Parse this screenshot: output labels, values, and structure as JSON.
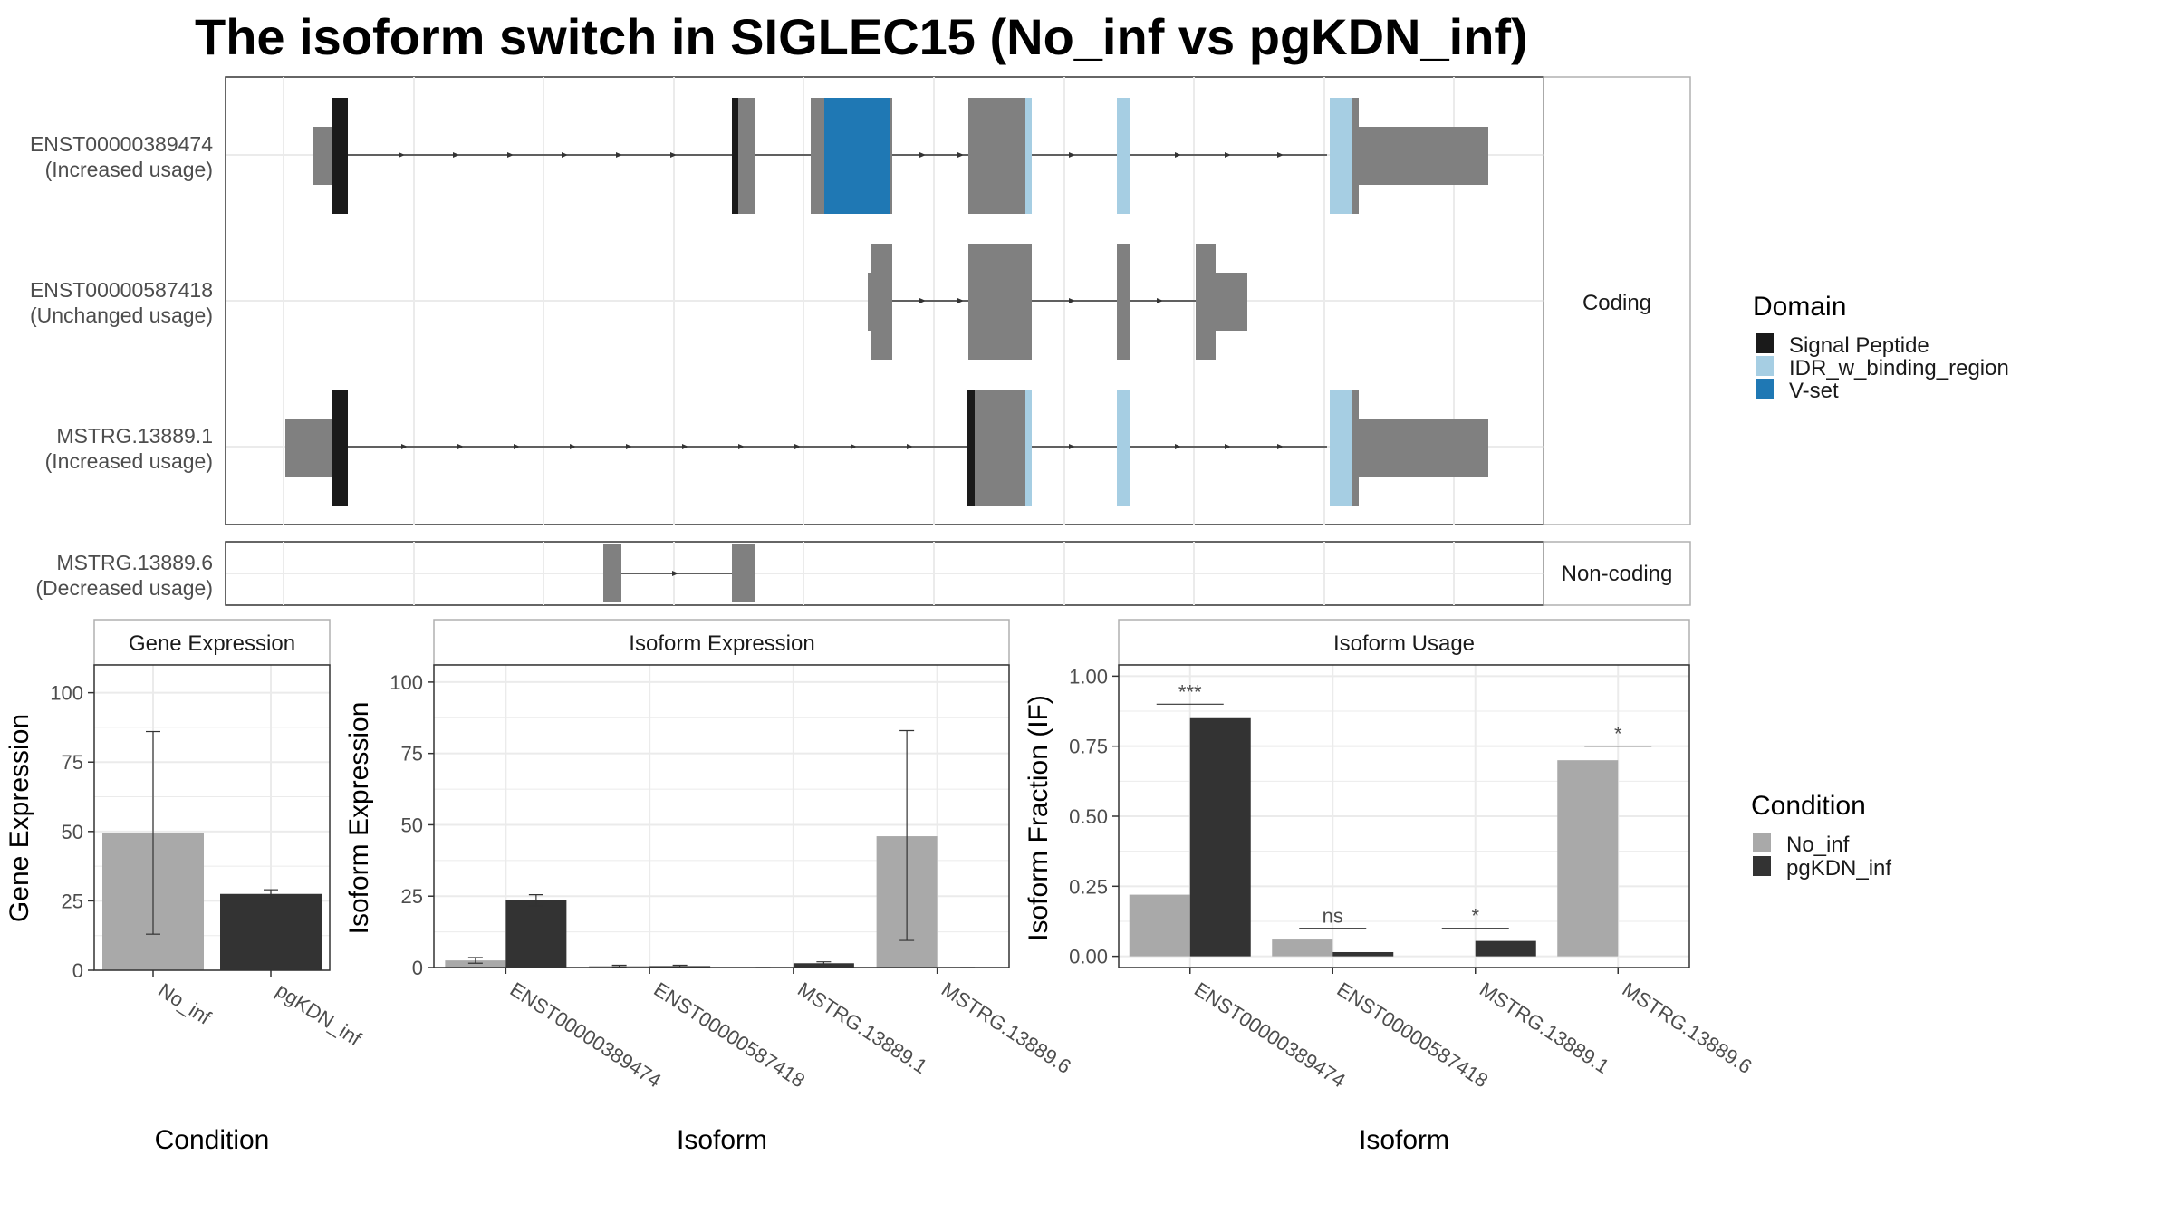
{
  "title": "The isoform switch in SIGLEC15 (No_inf vs pgKDN_inf)",
  "colors": {
    "exon": "#808080",
    "signal_peptide": "#1a1a1a",
    "idr": "#a6cee3",
    "vset": "#1f78b4",
    "no_inf": "#a9a9a9",
    "pgkdn_inf": "#333333",
    "grid": "#ebebeb",
    "panel_border": "#333333",
    "strip_border": "#b0b0b0"
  },
  "structure_panel": {
    "facet_labels": [
      "Coding",
      "Non-coding"
    ],
    "isoforms": [
      {
        "id": "ENST00000389474",
        "status": "(Increased usage)",
        "group": "Coding"
      },
      {
        "id": "ENST00000587418",
        "status": "(Unchanged usage)",
        "group": "Coding"
      },
      {
        "id": "MSTRG.13889.1",
        "status": "(Increased usage)",
        "group": "Coding"
      },
      {
        "id": "MSTRG.13889.6",
        "status": "(Decreased usage)",
        "group": "Non-coding"
      }
    ]
  },
  "domain_legend": {
    "title": "Domain",
    "items": [
      {
        "label": "Signal Peptide",
        "color": "#1a1a1a"
      },
      {
        "label": "IDR_w_binding_region",
        "color": "#a6cee3"
      },
      {
        "label": "V-set",
        "color": "#1f78b4"
      }
    ]
  },
  "condition_legend": {
    "title": "Condition",
    "items": [
      {
        "label": "No_inf",
        "color": "#a9a9a9"
      },
      {
        "label": "pgKDN_inf",
        "color": "#333333"
      }
    ]
  },
  "chart_data": [
    {
      "type": "bar",
      "title": "Gene Expression",
      "xlabel": "Condition",
      "ylabel": "Gene Expression",
      "categories": [
        "No_inf",
        "pgKDN_inf"
      ],
      "values": [
        49.5,
        27.5
      ],
      "error_low": [
        13,
        26
      ],
      "error_high": [
        86,
        29
      ],
      "ylim": [
        0,
        110
      ],
      "yticks": [
        0,
        25,
        50,
        75,
        100
      ]
    },
    {
      "type": "bar",
      "title": "Isoform Expression",
      "xlabel": "Isoform",
      "ylabel": "Isoform Expression",
      "categories": [
        "ENST00000389474",
        "ENST00000587418",
        "MSTRG.13889.1",
        "MSTRG.13889.6"
      ],
      "series": [
        {
          "name": "No_inf",
          "values": [
            2.5,
            0.5,
            0,
            46
          ],
          "error_low": [
            1.5,
            0.2,
            0,
            9.5
          ],
          "error_high": [
            3.5,
            0.8,
            0,
            83
          ]
        },
        {
          "name": "pgKDN_inf",
          "values": [
            23.5,
            0.5,
            1.5,
            0
          ],
          "error_low": [
            21.5,
            0.2,
            1,
            0
          ],
          "error_high": [
            25.5,
            0.8,
            2,
            0
          ]
        }
      ],
      "ylim": [
        0,
        106
      ],
      "yticks": [
        0,
        25,
        50,
        75,
        100
      ]
    },
    {
      "type": "bar",
      "title": "Isoform Usage",
      "xlabel": "Isoform",
      "ylabel": "Isoform Fraction (IF)",
      "categories": [
        "ENST00000389474",
        "ENST00000587418",
        "MSTRG.13889.1",
        "MSTRG.13889.6"
      ],
      "series": [
        {
          "name": "No_inf",
          "values": [
            0.22,
            0.06,
            0,
            0.7
          ]
        },
        {
          "name": "pgKDN_inf",
          "values": [
            0.85,
            0.015,
            0.055,
            0
          ]
        }
      ],
      "significance": [
        {
          "label": "***",
          "y": 0.9
        },
        {
          "label": "ns",
          "y": 0.1
        },
        {
          "label": "*",
          "y": 0.1
        },
        {
          "label": "*",
          "y": 0.75
        }
      ],
      "ylim": [
        -0.04,
        1.04
      ],
      "yticks": [
        0,
        0.25,
        0.5,
        0.75,
        1.0
      ],
      "ytick_labels": [
        "0.00",
        "0.25",
        "0.50",
        "0.75",
        "1.00"
      ]
    }
  ]
}
